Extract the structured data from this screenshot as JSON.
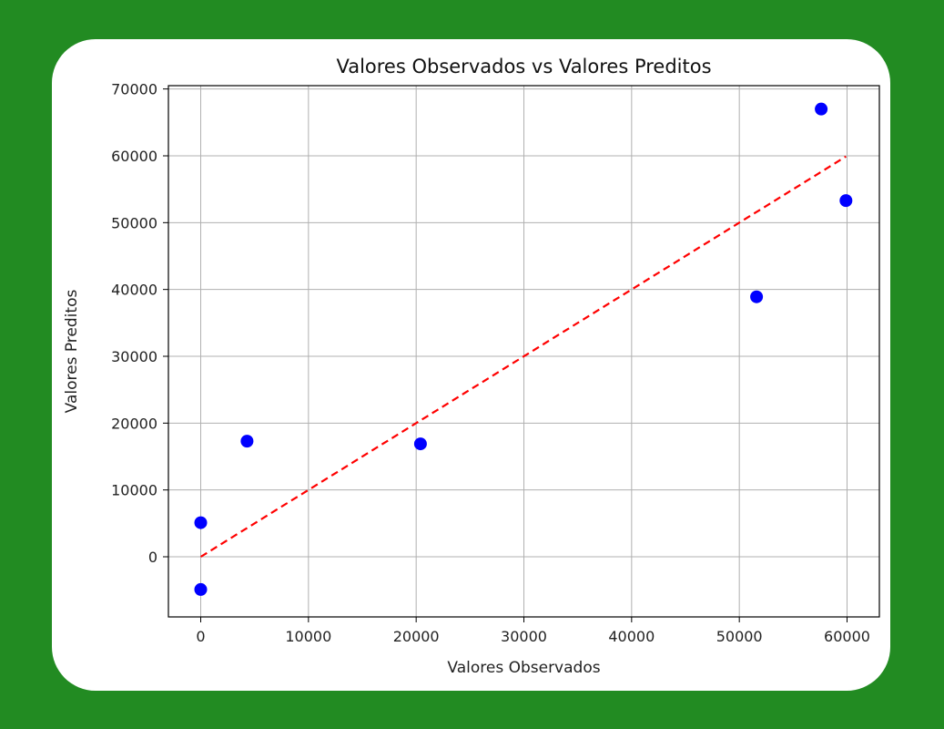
{
  "chart_data": {
    "type": "scatter",
    "title": "Valores Observados vs Valores Preditos",
    "xlabel": "Valores Observados",
    "ylabel": "Valores Preditos",
    "xlim": [
      -3000,
      63000
    ],
    "ylim": [
      -9000,
      70500
    ],
    "x_ticks": [
      0,
      10000,
      20000,
      30000,
      40000,
      50000,
      60000
    ],
    "x_tick_labels": [
      "0",
      "10000",
      "20000",
      "30000",
      "40000",
      "50000",
      "60000"
    ],
    "y_ticks": [
      0,
      10000,
      20000,
      30000,
      40000,
      50000,
      60000,
      70000
    ],
    "y_tick_labels": [
      "0",
      "10000",
      "20000",
      "30000",
      "40000",
      "50000",
      "60000",
      "70000"
    ],
    "grid": true,
    "series": [
      {
        "points": [
          {
            "x": 0,
            "y": 5100
          },
          {
            "x": 0,
            "y": -4900
          },
          {
            "x": 4300,
            "y": 17300
          },
          {
            "x": 20400,
            "y": 16900
          },
          {
            "x": 51600,
            "y": 38900
          },
          {
            "x": 57600,
            "y": 67000
          },
          {
            "x": 59900,
            "y": 53300
          }
        ],
        "color": "#0000ff"
      }
    ],
    "reference_line": {
      "from": [
        0,
        0
      ],
      "to": [
        59900,
        59900
      ],
      "color": "#ff0000",
      "style": "dashed"
    }
  }
}
